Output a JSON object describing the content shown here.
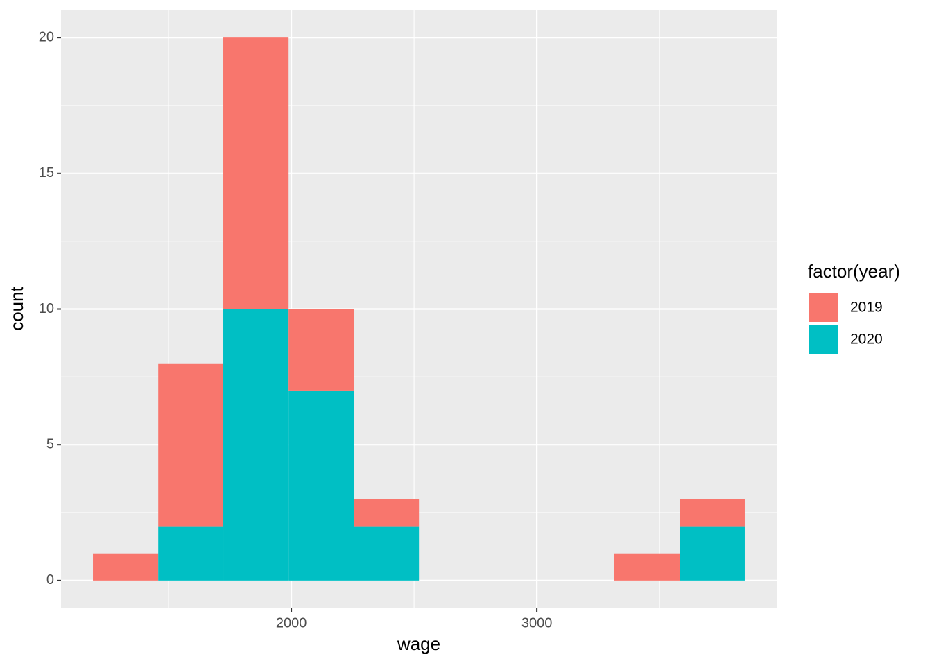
{
  "chart_data": {
    "type": "histogram",
    "stacked": true,
    "x_label": "wage",
    "y_label": "count",
    "bins": [
      1192,
      1458,
      1723,
      1989,
      2254,
      2520,
      2785,
      3051,
      3316,
      3582,
      3847
    ],
    "series": [
      {
        "name": "2019",
        "color": "#f8766d",
        "values": [
          1,
          6,
          10,
          3,
          1,
          0,
          0,
          0,
          1,
          1
        ]
      },
      {
        "name": "2020",
        "color": "#00bfc4",
        "values": [
          0,
          2,
          10,
          7,
          2,
          0,
          0,
          0,
          0,
          2
        ]
      }
    ],
    "xlim": [
      1062,
      3977
    ],
    "xticks": [
      2000,
      3000
    ],
    "xminor": [
      1500,
      2500,
      3500
    ],
    "ylim": [
      -1,
      21
    ],
    "yticks": [
      0,
      5,
      10,
      15,
      20
    ],
    "yminor": [
      2.5,
      7.5,
      12.5,
      17.5
    ],
    "grid": true,
    "legend_title": "factor(year)",
    "legend_position": "right"
  }
}
